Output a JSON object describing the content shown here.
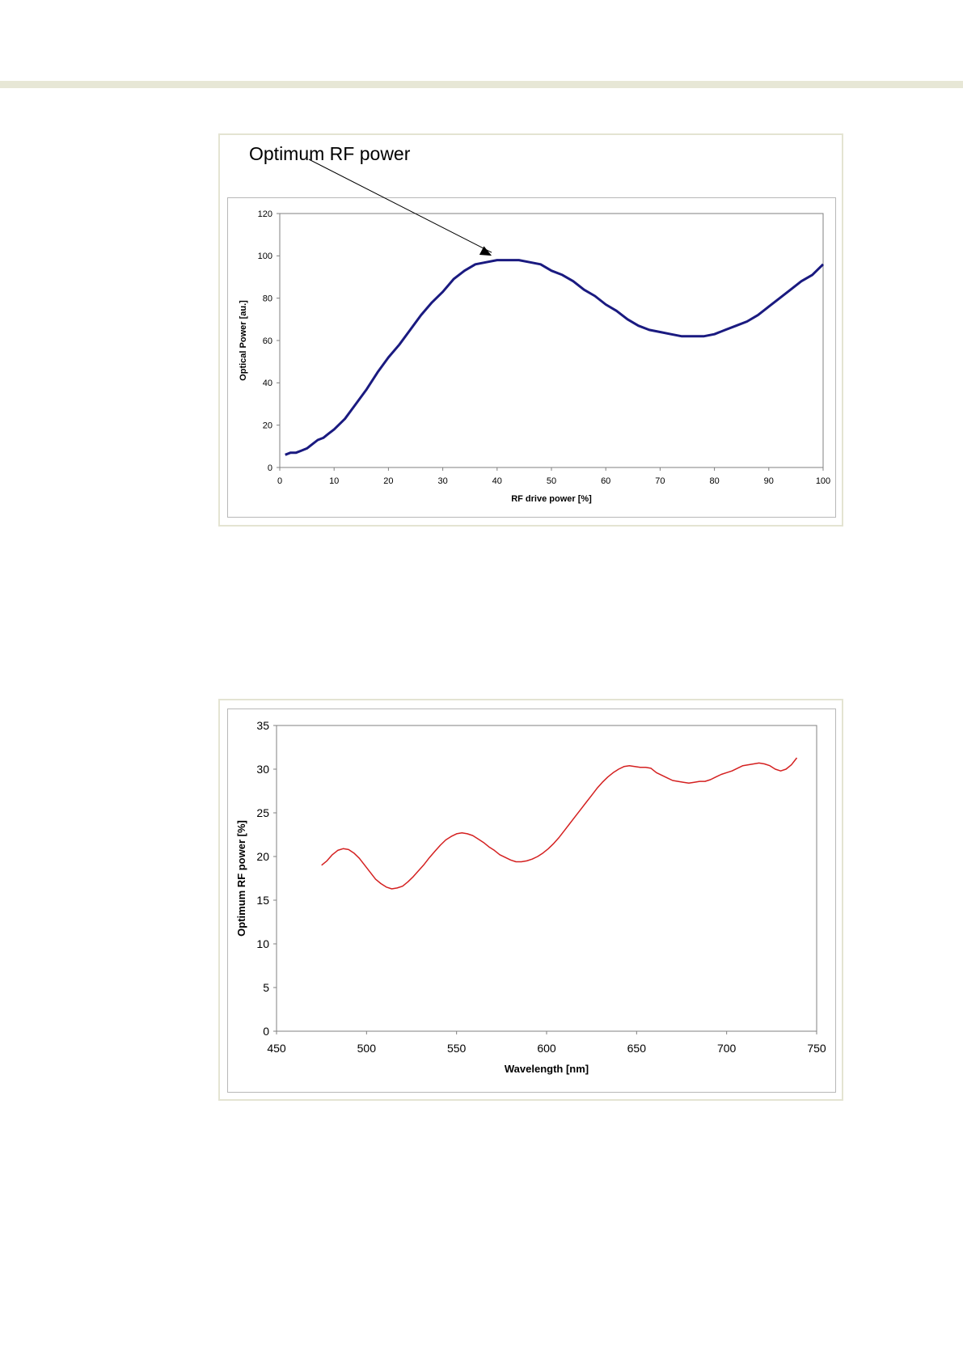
{
  "chart_data": [
    {
      "type": "line",
      "title": "",
      "xlabel": "RF drive power [%]",
      "ylabel": "Optical Power [au.]",
      "xlim": [
        0,
        100
      ],
      "ylim": [
        0,
        120
      ],
      "xticks": [
        "0",
        "10",
        "20",
        "30",
        "40",
        "50",
        "60",
        "70",
        "80",
        "90",
        "100"
      ],
      "yticks": [
        "0",
        "20",
        "40",
        "60",
        "80",
        "100",
        "120"
      ],
      "grid": false,
      "line_color": "#1a1a80",
      "annotation": {
        "text": "Optimum RF power",
        "target": {
          "x": 39,
          "y": 97
        }
      },
      "series": [
        {
          "x": [
            1,
            2,
            3,
            4,
            5,
            6,
            7,
            8,
            9,
            10,
            12,
            14,
            16,
            18,
            20,
            22,
            24,
            26,
            28,
            30,
            32,
            34,
            36,
            38,
            40,
            42,
            44,
            46,
            48,
            50,
            52,
            54,
            56,
            58,
            60,
            62,
            64,
            66,
            68,
            70,
            72,
            74,
            76,
            78,
            80,
            82,
            84,
            86,
            88,
            90,
            92,
            94,
            96,
            98,
            100
          ],
          "y": [
            6,
            7,
            7,
            8,
            9,
            11,
            13,
            14,
            16,
            18,
            23,
            30,
            37,
            45,
            52,
            58,
            65,
            72,
            78,
            83,
            89,
            93,
            96,
            97,
            98,
            98,
            98,
            97,
            96,
            93,
            91,
            88,
            84,
            81,
            77,
            74,
            70,
            67,
            65,
            64,
            63,
            62,
            62,
            62,
            63,
            65,
            67,
            69,
            72,
            76,
            80,
            84,
            88,
            91,
            96
          ]
        }
      ]
    },
    {
      "type": "line",
      "title": "",
      "xlabel": "Wavelength [nm]",
      "ylabel": "Optimum RF power [%]",
      "xlim": [
        450,
        750
      ],
      "ylim": [
        0,
        35
      ],
      "xticks": [
        "450",
        "500",
        "550",
        "600",
        "650",
        "700",
        "750"
      ],
      "yticks": [
        "0",
        "5",
        "10",
        "15",
        "20",
        "25",
        "30",
        "35"
      ],
      "grid": false,
      "line_color": "#d42020",
      "series": [
        {
          "x": [
            475,
            478,
            481,
            484,
            487,
            490,
            493,
            496,
            499,
            502,
            505,
            508,
            511,
            514,
            517,
            520,
            523,
            526,
            529,
            532,
            535,
            538,
            541,
            544,
            547,
            550,
            553,
            556,
            559,
            562,
            565,
            568,
            571,
            574,
            577,
            580,
            583,
            586,
            589,
            592,
            595,
            598,
            601,
            604,
            607,
            610,
            613,
            616,
            619,
            622,
            625,
            628,
            631,
            634,
            637,
            640,
            643,
            646,
            649,
            652,
            655,
            658,
            661,
            664,
            667,
            670,
            673,
            676,
            679,
            682,
            685,
            688,
            691,
            694,
            697,
            700,
            703,
            706,
            709,
            712,
            715,
            718,
            721,
            724,
            727,
            730,
            733,
            736,
            739
          ],
          "y": [
            19.0,
            19.5,
            20.2,
            20.7,
            20.9,
            20.8,
            20.4,
            19.8,
            19.0,
            18.2,
            17.4,
            16.9,
            16.5,
            16.3,
            16.4,
            16.6,
            17.1,
            17.7,
            18.4,
            19.1,
            19.9,
            20.6,
            21.3,
            21.9,
            22.3,
            22.6,
            22.7,
            22.6,
            22.4,
            22.0,
            21.6,
            21.1,
            20.7,
            20.2,
            19.9,
            19.6,
            19.4,
            19.4,
            19.5,
            19.7,
            20.0,
            20.4,
            20.9,
            21.5,
            22.2,
            23.0,
            23.8,
            24.6,
            25.4,
            26.2,
            27.0,
            27.8,
            28.5,
            29.1,
            29.6,
            30.0,
            30.3,
            30.4,
            30.3,
            30.2,
            30.2,
            30.1,
            29.6,
            29.3,
            29.0,
            28.7,
            28.6,
            28.5,
            28.4,
            28.5,
            28.6,
            28.6,
            28.8,
            29.1,
            29.4,
            29.6,
            29.8,
            30.1,
            30.4,
            30.5,
            30.6,
            30.7,
            30.6,
            30.4,
            30.0,
            29.8,
            30.0,
            30.5,
            31.3
          ]
        }
      ]
    }
  ]
}
